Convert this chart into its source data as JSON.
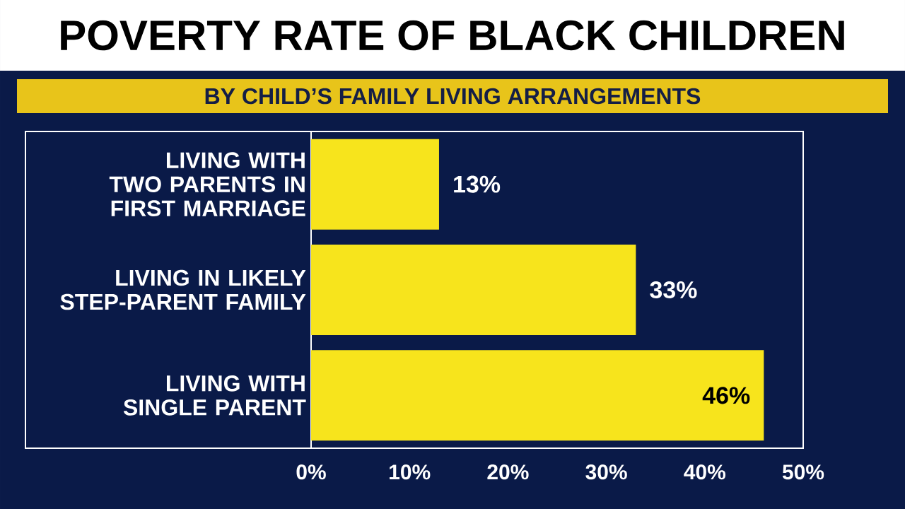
{
  "chart_data": {
    "type": "bar",
    "orientation": "horizontal",
    "title": "POVERTY RATE OF BLACK CHILDREN",
    "subtitle": "BY CHILD’S FAMILY LIVING ARRANGEMENTS",
    "categories": [
      "LIVING WITH TWO PARENTS IN FIRST MARRIAGE",
      "LIVING IN LIKELY STEP-PARENT FAMILY",
      "LIVING WITH SINGLE PARENT"
    ],
    "values": [
      13,
      33,
      46
    ],
    "color": "#f7e41c",
    "value_labels": [
      "13%",
      "33%",
      "46%"
    ],
    "xlim": [
      0,
      50
    ],
    "xticks": [
      {
        "value": 0,
        "label": "0%"
      },
      {
        "value": 10,
        "label": "10%"
      },
      {
        "value": 20,
        "label": "20%"
      },
      {
        "value": 30,
        "label": "30%"
      },
      {
        "value": 40,
        "label": "40%"
      },
      {
        "value": 50,
        "label": "50%"
      }
    ],
    "grid": false
  }
}
